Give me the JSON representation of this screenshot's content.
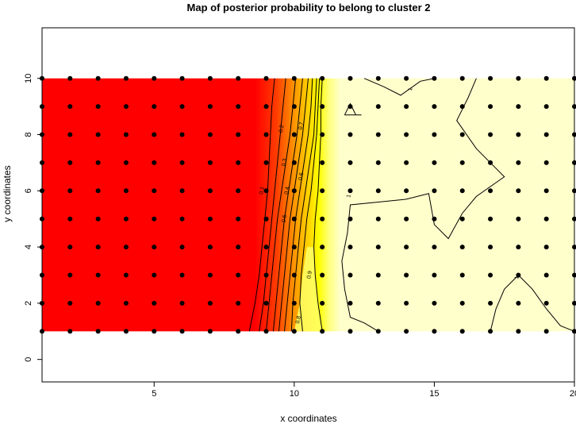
{
  "chart_data": {
    "type": "heatmap",
    "title": "Map of posterior probability to belong to cluster  2",
    "xlabel": "x coordinates",
    "ylabel": "y coordinates",
    "xlim": [
      1,
      20
    ],
    "ylim": [
      -0.8,
      11.8
    ],
    "grid": false,
    "xticks": [
      "5",
      "10",
      "15",
      "20"
    ],
    "xtick_values": [
      5,
      10,
      15,
      20
    ],
    "yticks": [
      "0",
      "2",
      "4",
      "6",
      "8",
      "10"
    ],
    "ytick_values": [
      0,
      2,
      4,
      6,
      8,
      10
    ],
    "field_extent": {
      "x": [
        1,
        20
      ],
      "y": [
        1,
        10
      ]
    },
    "points": {
      "x": [
        1,
        2,
        3,
        4,
        5,
        6,
        7,
        8,
        9,
        10,
        11,
        12,
        13,
        14,
        15,
        16,
        17,
        18,
        19,
        20
      ],
      "y": [
        1,
        2,
        3,
        4,
        5,
        6,
        7,
        8,
        9,
        10
      ]
    },
    "colors": {
      "low": "#ff0000",
      "mid_orange": "#ff8c00",
      "mid_yellow": "#ffff00",
      "high": "#ffffcc",
      "points": "#000000",
      "contours": "#000000"
    },
    "contours": [
      {
        "level": "0.1",
        "path": [
          [
            8.4,
            1
          ],
          [
            8.6,
            2
          ],
          [
            8.75,
            3
          ],
          [
            8.85,
            4
          ],
          [
            8.95,
            5
          ],
          [
            9.05,
            6
          ],
          [
            9.1,
            7
          ],
          [
            9.15,
            8
          ],
          [
            9.2,
            9
          ],
          [
            9.3,
            10
          ]
        ]
      },
      {
        "level": "0.2",
        "path": [
          [
            8.75,
            1
          ],
          [
            8.9,
            2
          ],
          [
            9.0,
            3
          ],
          [
            9.1,
            4
          ],
          [
            9.2,
            5
          ],
          [
            9.3,
            6
          ],
          [
            9.4,
            7
          ],
          [
            9.5,
            8
          ],
          [
            9.6,
            9
          ],
          [
            9.7,
            10
          ]
        ]
      },
      {
        "level": "0.3",
        "path": [
          [
            9.0,
            1
          ],
          [
            9.1,
            2
          ],
          [
            9.2,
            3
          ],
          [
            9.3,
            4
          ],
          [
            9.4,
            5
          ],
          [
            9.55,
            6
          ],
          [
            9.7,
            7
          ],
          [
            9.85,
            8
          ],
          [
            9.95,
            9
          ],
          [
            10.05,
            10
          ]
        ]
      },
      {
        "level": "0.4",
        "path": [
          [
            9.25,
            1
          ],
          [
            9.35,
            2
          ],
          [
            9.45,
            3
          ],
          [
            9.55,
            4
          ],
          [
            9.65,
            5
          ],
          [
            9.8,
            6
          ],
          [
            9.95,
            7
          ],
          [
            10.1,
            8
          ],
          [
            10.2,
            9
          ],
          [
            10.3,
            10
          ]
        ]
      },
      {
        "level": "0.5",
        "path": [
          [
            9.45,
            1
          ],
          [
            9.55,
            2
          ],
          [
            9.65,
            3
          ],
          [
            9.75,
            4
          ],
          [
            9.85,
            5
          ],
          [
            10.0,
            6
          ],
          [
            10.15,
            7
          ],
          [
            10.3,
            8
          ],
          [
            10.4,
            9
          ],
          [
            10.5,
            10
          ]
        ]
      },
      {
        "level": "0.6",
        "path": [
          [
            9.65,
            1
          ],
          [
            9.75,
            2
          ],
          [
            9.85,
            3
          ],
          [
            9.95,
            4
          ],
          [
            10.05,
            5
          ],
          [
            10.2,
            6
          ],
          [
            10.35,
            7
          ],
          [
            10.5,
            8
          ],
          [
            10.6,
            9
          ],
          [
            10.65,
            10
          ]
        ]
      },
      {
        "level": "0.7",
        "path": [
          [
            9.9,
            1
          ],
          [
            9.95,
            2
          ],
          [
            10.05,
            3
          ],
          [
            10.15,
            4
          ],
          [
            10.25,
            5
          ],
          [
            10.4,
            6
          ],
          [
            10.55,
            7
          ],
          [
            10.7,
            8
          ],
          [
            10.75,
            9
          ],
          [
            10.8,
            10
          ]
        ]
      },
      {
        "level": "0.8",
        "path": [
          [
            10.3,
            1
          ],
          [
            10.2,
            2
          ],
          [
            10.25,
            3
          ],
          [
            10.35,
            4
          ],
          [
            10.45,
            5
          ],
          [
            10.6,
            6
          ],
          [
            10.7,
            7
          ],
          [
            10.8,
            8
          ],
          [
            10.85,
            9
          ],
          [
            10.9,
            10
          ]
        ]
      },
      {
        "level": "0.9",
        "path": [
          [
            11.0,
            1
          ],
          [
            10.85,
            2
          ],
          [
            10.75,
            3
          ],
          [
            10.7,
            4
          ],
          [
            10.75,
            5
          ],
          [
            10.85,
            6
          ],
          [
            10.9,
            7
          ],
          [
            10.95,
            8
          ],
          [
            10.95,
            9
          ],
          [
            11.0,
            10
          ]
        ]
      },
      {
        "level": "1",
        "path": [
          [
            13.0,
            1
          ],
          [
            12.5,
            1.3
          ],
          [
            12.0,
            1.5
          ],
          [
            11.8,
            2.5
          ],
          [
            11.7,
            3.5
          ],
          [
            11.9,
            4.5
          ],
          [
            12.0,
            5.5
          ],
          [
            13.0,
            5.6
          ],
          [
            14.0,
            5.7
          ],
          [
            14.8,
            5.9
          ],
          [
            15.0,
            4.8
          ],
          [
            15.5,
            4.3
          ],
          [
            16.0,
            5.2
          ],
          [
            16.5,
            5.8
          ],
          [
            17.5,
            6.5
          ],
          [
            16.5,
            7.5
          ],
          [
            15.8,
            8.5
          ],
          [
            16.2,
            9.3
          ],
          [
            16.5,
            10
          ]
        ]
      },
      {
        "level": "1",
        "path": [
          [
            12.5,
            10
          ],
          [
            13.2,
            9.7
          ],
          [
            13.8,
            9.4
          ],
          [
            14.5,
            9.9
          ],
          [
            15.0,
            10
          ]
        ]
      },
      {
        "level": "1",
        "path": [
          [
            11.8,
            8.7
          ],
          [
            12.0,
            9.1
          ],
          [
            12.2,
            8.7
          ],
          [
            12.4,
            8.7
          ],
          [
            11.8,
            8.7
          ]
        ]
      },
      {
        "level": "1",
        "path": [
          [
            17.0,
            1
          ],
          [
            17.2,
            1.8
          ],
          [
            17.5,
            2.5
          ],
          [
            18.0,
            3.0
          ],
          [
            18.5,
            2.5
          ],
          [
            19.0,
            1.8
          ],
          [
            19.5,
            1.2
          ],
          [
            20,
            1
          ]
        ]
      }
    ],
    "contour_labels": [
      {
        "text": "0.1",
        "x": 8.9,
        "y": 6.0
      },
      {
        "text": "0.2",
        "x": 9.6,
        "y": 8.2
      },
      {
        "text": "0.3",
        "x": 9.7,
        "y": 7.0
      },
      {
        "text": "0.4",
        "x": 9.8,
        "y": 6.0
      },
      {
        "text": "0.5",
        "x": 9.7,
        "y": 5.0
      },
      {
        "text": "0.6",
        "x": 10.3,
        "y": 6.5
      },
      {
        "text": "0.7",
        "x": 10.3,
        "y": 8.3
      },
      {
        "text": "0.8",
        "x": 10.2,
        "y": 1.4
      },
      {
        "text": "0.9",
        "x": 10.6,
        "y": 3.0
      },
      {
        "text": "1",
        "x": 12.0,
        "y": 5.8
      },
      {
        "text": "1",
        "x": 14.2,
        "y": 9.6
      },
      {
        "text": "1",
        "x": 18.0,
        "y": 2.9
      }
    ]
  }
}
